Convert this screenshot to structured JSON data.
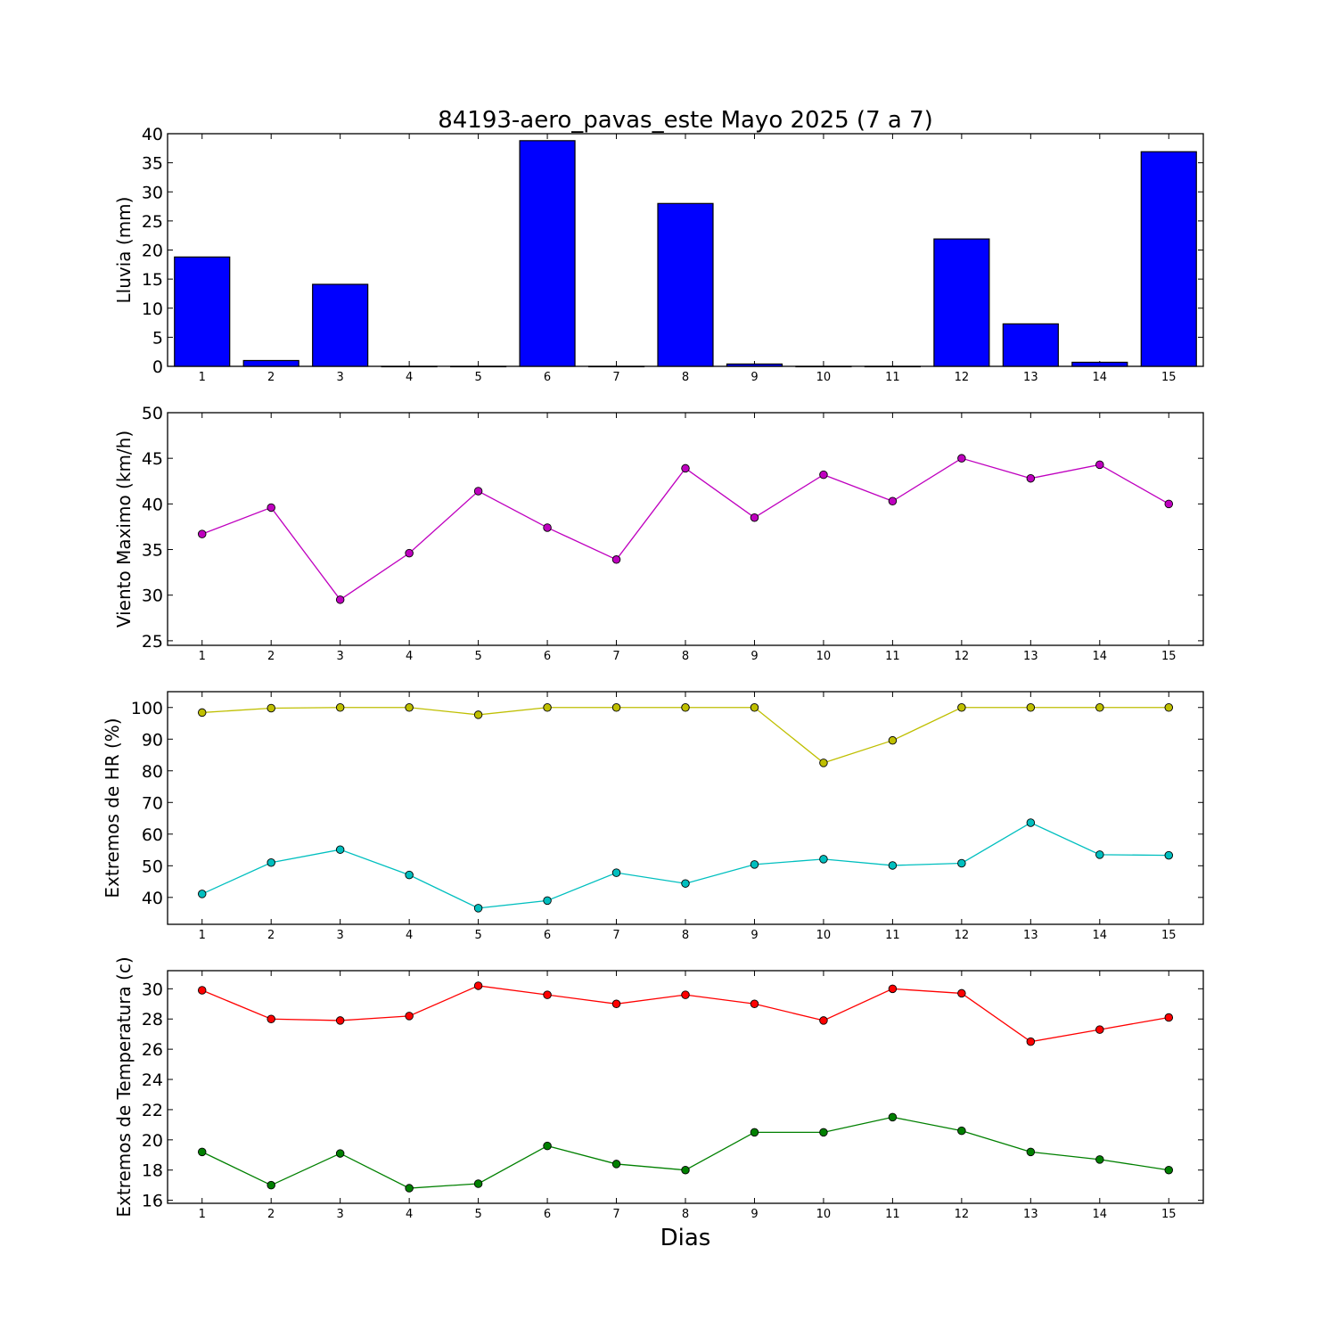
{
  "chart_data": {
    "title": "84193-aero_pavas_este Mayo 2025  (7 a 7)",
    "xlabel": "Dias",
    "days": [
      1,
      2,
      3,
      4,
      5,
      6,
      7,
      8,
      9,
      10,
      11,
      12,
      13,
      14,
      15
    ],
    "panels": [
      {
        "type": "bar",
        "ylabel": "Lluvia (mm)",
        "ylim": [
          0,
          40
        ],
        "yticks": [
          0,
          5,
          10,
          15,
          20,
          25,
          30,
          35,
          40
        ],
        "series": [
          {
            "color": "#0000ff",
            "values": [
              18.8,
              1.0,
              14.1,
              0.0,
              0.0,
              38.8,
              0.0,
              28.0,
              0.4,
              0.0,
              0.0,
              21.9,
              7.3,
              0.7,
              36.9
            ]
          }
        ]
      },
      {
        "type": "line",
        "ylabel": "Viento Maximo (km/h)",
        "ylim": [
          24.5,
          50
        ],
        "yticks": [
          25,
          30,
          35,
          40,
          45,
          50
        ],
        "series": [
          {
            "color": "#bf00bf",
            "values": [
              36.7,
              39.6,
              29.5,
              34.6,
              41.4,
              37.4,
              33.9,
              43.9,
              38.5,
              43.2,
              40.3,
              45.0,
              42.8,
              44.3,
              40.0
            ]
          }
        ]
      },
      {
        "type": "line",
        "ylabel": "Extremos de HR (%)",
        "ylim": [
          31.5,
          105
        ],
        "yticks": [
          40,
          50,
          60,
          70,
          80,
          90,
          100
        ],
        "series": [
          {
            "color": "#bfbf00",
            "values": [
              98.4,
              99.8,
              100,
              100,
              97.7,
              100,
              100,
              100,
              100,
              82.5,
              89.6,
              100,
              100,
              100,
              100
            ]
          },
          {
            "color": "#00bfbf",
            "values": [
              41.1,
              51.0,
              55.1,
              47.1,
              36.6,
              39.0,
              47.8,
              44.4,
              50.4,
              52.1,
              50.1,
              50.8,
              63.6,
              53.5,
              53.3
            ]
          }
        ]
      },
      {
        "type": "line",
        "ylabel": "Extremos de Temperatura (c)",
        "ylim": [
          15.8,
          31.2
        ],
        "yticks": [
          16,
          18,
          20,
          22,
          24,
          26,
          28,
          30
        ],
        "series": [
          {
            "color": "#ff0000",
            "values": [
              29.9,
              28.0,
              27.9,
              28.2,
              30.2,
              29.6,
              29.0,
              29.6,
              29.0,
              27.9,
              30.0,
              29.7,
              26.5,
              27.3,
              28.1
            ]
          },
          {
            "color": "#008000",
            "values": [
              19.2,
              17.0,
              19.1,
              16.8,
              17.1,
              19.6,
              18.4,
              18.0,
              20.5,
              20.5,
              21.5,
              20.6,
              19.2,
              18.7,
              18.0
            ]
          }
        ]
      }
    ]
  }
}
